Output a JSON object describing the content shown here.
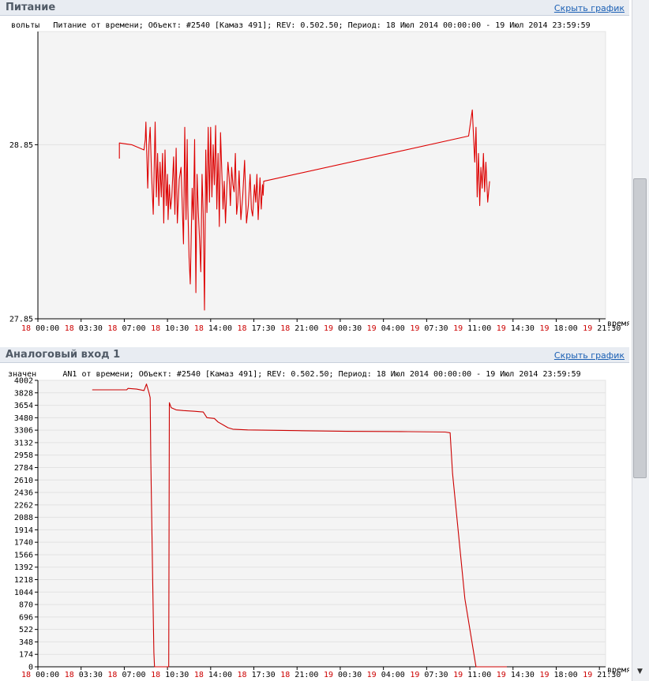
{
  "panels": [
    {
      "title": "Питание",
      "hide_label": "Скрыть график"
    },
    {
      "title": "Аналоговый вход 1",
      "hide_label": "Скрыть график"
    }
  ],
  "chart_data": [
    {
      "type": "line",
      "title": "Питание от времени; Объект: #2540 [Камаз 491]; REV: 0.502.50; Период: 18 Июл 2014 00:00:00 - 19 Июл 2014 23:59:59",
      "ylabel": "вольты",
      "xlabel": "время",
      "ylim": [
        27.85,
        29.5
      ],
      "yticks": [
        27.85,
        28.85
      ],
      "ytick_labels": [
        "27.85",
        "28.85"
      ],
      "x_unit": "hours since 18 Jul 00:00",
      "xlim": [
        0,
        46
      ],
      "xticks": [
        {
          "day": "18",
          "time": "00:00"
        },
        {
          "day": "18",
          "time": "03:30"
        },
        {
          "day": "18",
          "time": "07:00"
        },
        {
          "day": "18",
          "time": "10:30"
        },
        {
          "day": "18",
          "time": "14:00"
        },
        {
          "day": "18",
          "time": "17:30"
        },
        {
          "day": "18",
          "time": "21:00"
        },
        {
          "day": "19",
          "time": "00:30"
        },
        {
          "day": "19",
          "time": "04:00"
        },
        {
          "day": "19",
          "time": "07:30"
        },
        {
          "day": "19",
          "time": "11:00"
        },
        {
          "day": "19",
          "time": "14:30"
        },
        {
          "day": "19",
          "time": "18:00"
        },
        {
          "day": "19",
          "time": "21:30"
        }
      ],
      "grid": "horizontal",
      "color": "#dd0000",
      "series": [
        {
          "x": [
            6.6,
            6.6,
            7.6,
            8.6,
            8.7,
            8.75,
            8.9,
            9.0,
            9.1,
            9.2,
            9.35,
            9.5,
            9.6,
            9.7,
            9.8,
            9.9,
            10.0,
            10.1,
            10.2,
            10.3,
            10.4,
            10.5,
            10.55,
            10.65,
            10.75,
            10.85,
            11.0,
            11.1,
            11.2,
            11.3,
            11.45,
            11.6,
            11.8,
            11.9,
            12.0,
            12.1,
            12.15,
            12.25,
            12.35,
            12.5,
            12.6,
            12.7,
            12.8,
            12.9,
            13.0,
            13.1,
            13.2,
            13.3,
            13.4,
            13.5,
            13.6,
            13.7,
            13.8,
            13.9,
            14.0,
            14.1,
            14.2,
            14.3,
            14.4,
            14.5,
            14.6,
            14.7,
            14.8,
            14.9,
            15.0,
            15.1,
            15.2,
            15.3,
            15.4,
            15.5,
            15.6,
            15.7,
            15.8,
            15.9,
            16.0,
            16.1,
            16.2,
            16.3,
            16.45,
            16.6,
            16.75,
            16.9,
            17.05,
            17.2,
            17.3,
            17.4,
            17.55,
            17.65,
            17.75,
            17.85,
            18.0,
            18.1,
            18.2,
            18.25,
            18.3,
            34.9,
            35.2,
            35.4,
            35.5,
            35.6,
            35.7,
            35.8,
            35.9,
            36.0,
            36.1,
            36.2,
            36.3,
            36.45,
            36.6
          ],
          "y": [
            28.77,
            28.86,
            28.85,
            28.82,
            28.88,
            28.98,
            28.6,
            28.85,
            28.95,
            28.7,
            28.45,
            28.98,
            28.55,
            28.8,
            28.5,
            28.75,
            28.55,
            28.8,
            28.4,
            28.82,
            28.5,
            28.68,
            28.42,
            28.62,
            28.48,
            28.55,
            28.78,
            28.45,
            28.83,
            28.4,
            28.65,
            28.72,
            28.28,
            28.95,
            28.42,
            28.88,
            28.5,
            28.2,
            28.05,
            28.6,
            28.42,
            28.88,
            28.0,
            28.68,
            28.46,
            28.3,
            28.12,
            28.68,
            28.45,
            27.9,
            28.82,
            28.46,
            28.95,
            28.52,
            28.95,
            28.55,
            28.85,
            28.62,
            28.96,
            28.48,
            28.8,
            28.38,
            28.92,
            28.7,
            28.48,
            28.64,
            28.4,
            28.58,
            28.75,
            28.66,
            28.5,
            28.72,
            28.62,
            28.58,
            28.8,
            28.45,
            28.52,
            28.7,
            28.42,
            28.56,
            28.76,
            28.4,
            28.5,
            28.68,
            28.48,
            28.44,
            28.62,
            28.52,
            28.68,
            28.42,
            28.66,
            28.48,
            28.62,
            28.56,
            28.64,
            28.9,
            29.05,
            28.75,
            28.95,
            28.55,
            28.8,
            28.5,
            28.72,
            28.6,
            28.8,
            28.58,
            28.75,
            28.52,
            28.64
          ]
        }
      ]
    },
    {
      "type": "line",
      "title": "AN1 от времени; Объект: #2540 [Камаз 491]; REV: 0.502.50; Период: 18 Июл 2014 00:00:00 - 19 Июл 2014 23:59:59",
      "ylabel": "значен",
      "xlabel": "время",
      "ylim": [
        0,
        4002
      ],
      "yticks": [
        0,
        174,
        348,
        522,
        696,
        870,
        1044,
        1218,
        1392,
        1566,
        1740,
        1914,
        2088,
        2262,
        2436,
        2610,
        2784,
        2958,
        3132,
        3306,
        3480,
        3654,
        3828,
        4002
      ],
      "x_unit": "hours since 18 Jul 00:00",
      "xlim": [
        0,
        46
      ],
      "xticks": [
        {
          "day": "18",
          "time": "00:00"
        },
        {
          "day": "18",
          "time": "03:30"
        },
        {
          "day": "18",
          "time": "07:00"
        },
        {
          "day": "18",
          "time": "10:30"
        },
        {
          "day": "18",
          "time": "14:00"
        },
        {
          "day": "18",
          "time": "17:30"
        },
        {
          "day": "18",
          "time": "21:00"
        },
        {
          "day": "19",
          "time": "00:30"
        },
        {
          "day": "19",
          "time": "04:00"
        },
        {
          "day": "19",
          "time": "07:30"
        },
        {
          "day": "19",
          "time": "11:00"
        },
        {
          "day": "19",
          "time": "14:30"
        },
        {
          "day": "19",
          "time": "18:00"
        },
        {
          "day": "19",
          "time": "21:30"
        }
      ],
      "grid": "horizontal",
      "color": "#cc0000",
      "series": [
        {
          "x": [
            4.4,
            7.2,
            7.3,
            8.0,
            8.6,
            8.8,
            9.0,
            9.1,
            9.15,
            9.3,
            9.4,
            9.45,
            10.6,
            10.65,
            10.8,
            11.2,
            11.8,
            12.7,
            13.4,
            13.7,
            14.3,
            14.6,
            15.0,
            15.4,
            15.8,
            16.3,
            17.0,
            21.0,
            25.0,
            30.0,
            33.0,
            33.4,
            33.6,
            34.6,
            35.5,
            38.0
          ],
          "y": [
            3870,
            3870,
            3890,
            3880,
            3860,
            3950,
            3830,
            3760,
            2900,
            1200,
            200,
            0,
            0,
            3690,
            3620,
            3590,
            3580,
            3570,
            3560,
            3480,
            3470,
            3420,
            3380,
            3340,
            3320,
            3315,
            3310,
            3300,
            3290,
            3285,
            3280,
            3270,
            2700,
            950,
            0,
            0
          ]
        }
      ]
    }
  ]
}
